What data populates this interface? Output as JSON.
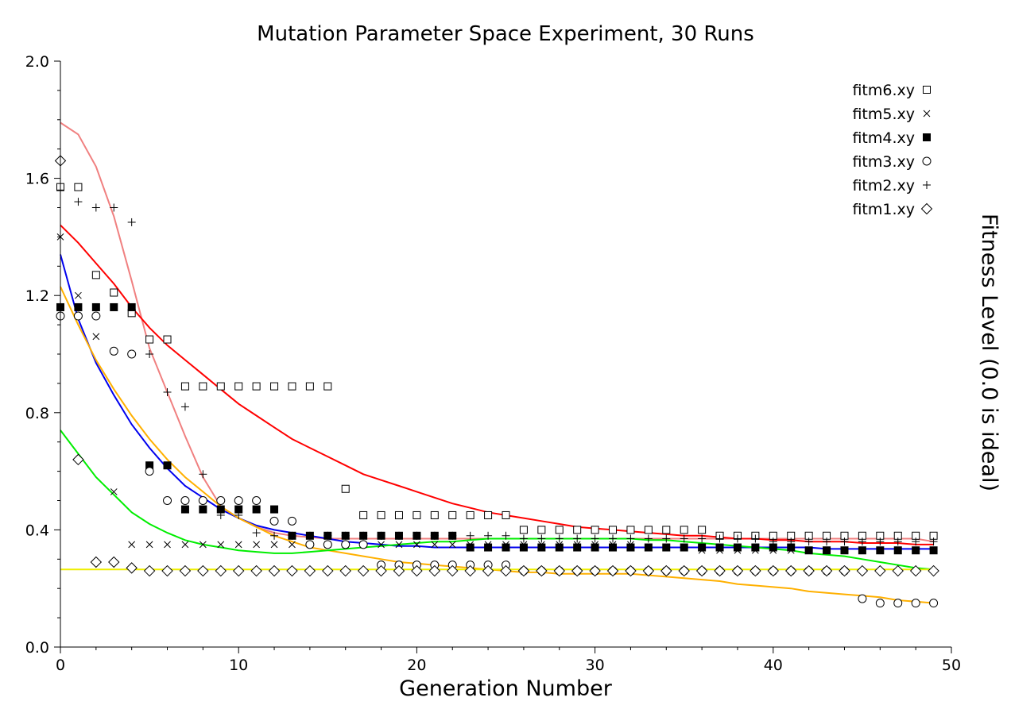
{
  "chart_data": {
    "type": "scatter",
    "title": "Mutation Parameter Space Experiment, 30 Runs",
    "xlabel": "Generation Number",
    "ylabel": "Fitness Level (0.0 is ideal)",
    "xlim": [
      0,
      50
    ],
    "ylim": [
      0,
      2.0
    ],
    "x_ticks": [
      "0",
      "10",
      "20",
      "30",
      "40",
      "50"
    ],
    "y_ticks": [
      "0.0",
      "0.4",
      "0.8",
      "1.2",
      "1.6",
      "2.0"
    ],
    "legend_position": "top-right",
    "series": [
      {
        "name": "fitm6.xy",
        "marker": "square",
        "x": [
          0,
          1,
          2,
          3,
          4,
          5,
          6,
          7,
          8,
          9,
          10,
          11,
          12,
          13,
          14,
          15,
          16,
          17,
          18,
          19,
          20,
          21,
          22,
          23,
          24,
          25,
          26,
          27,
          28,
          29,
          30,
          31,
          32,
          33,
          34,
          35,
          36,
          37,
          38,
          39,
          40,
          41,
          42,
          43,
          44,
          45,
          46,
          47,
          48,
          49
        ],
        "y": [
          1.57,
          1.57,
          1.27,
          1.21,
          1.14,
          1.05,
          1.05,
          0.89,
          0.89,
          0.89,
          0.89,
          0.89,
          0.89,
          0.89,
          0.89,
          0.89,
          0.54,
          0.45,
          0.45,
          0.45,
          0.45,
          0.45,
          0.45,
          0.45,
          0.45,
          0.45,
          0.4,
          0.4,
          0.4,
          0.4,
          0.4,
          0.4,
          0.4,
          0.4,
          0.4,
          0.4,
          0.4,
          0.38,
          0.38,
          0.38,
          0.38,
          0.38,
          0.38,
          0.38,
          0.38,
          0.38,
          0.38,
          0.38,
          0.38,
          0.38
        ]
      },
      {
        "name": "fitm5.xy",
        "marker": "x",
        "x": [
          0,
          1,
          2,
          3,
          4,
          5,
          6,
          7,
          8,
          9,
          10,
          11,
          12,
          13,
          14,
          15,
          16,
          17,
          18,
          19,
          20,
          21,
          22,
          23,
          24,
          25,
          26,
          27,
          28,
          29,
          30,
          31,
          32,
          33,
          34,
          35,
          36,
          37,
          38,
          39,
          40,
          41,
          42,
          43,
          44,
          45,
          46,
          47,
          48,
          49
        ],
        "y": [
          1.4,
          1.2,
          1.06,
          0.53,
          0.35,
          0.35,
          0.35,
          0.35,
          0.35,
          0.35,
          0.35,
          0.35,
          0.35,
          0.35,
          0.35,
          0.35,
          0.35,
          0.35,
          0.35,
          0.35,
          0.35,
          0.35,
          0.35,
          0.35,
          0.35,
          0.35,
          0.35,
          0.35,
          0.35,
          0.35,
          0.35,
          0.35,
          0.35,
          0.34,
          0.34,
          0.34,
          0.33,
          0.33,
          0.33,
          0.33,
          0.33,
          0.33,
          0.33,
          0.33,
          0.33,
          0.33,
          0.33,
          0.33,
          0.33,
          0.33
        ]
      },
      {
        "name": "fitm4.xy",
        "marker": "filled-square",
        "x": [
          0,
          1,
          2,
          3,
          4,
          5,
          6,
          7,
          8,
          9,
          10,
          11,
          12,
          13,
          14,
          15,
          16,
          17,
          18,
          19,
          20,
          21,
          22,
          23,
          24,
          25,
          26,
          27,
          28,
          29,
          30,
          31,
          32,
          33,
          34,
          35,
          36,
          37,
          38,
          39,
          40,
          41,
          42,
          43,
          44,
          45,
          46,
          47,
          48,
          49
        ],
        "y": [
          1.16,
          1.16,
          1.16,
          1.16,
          1.16,
          0.62,
          0.62,
          0.47,
          0.47,
          0.47,
          0.47,
          0.47,
          0.47,
          0.38,
          0.38,
          0.38,
          0.38,
          0.38,
          0.38,
          0.38,
          0.38,
          0.38,
          0.38,
          0.34,
          0.34,
          0.34,
          0.34,
          0.34,
          0.34,
          0.34,
          0.34,
          0.34,
          0.34,
          0.34,
          0.34,
          0.34,
          0.34,
          0.34,
          0.34,
          0.34,
          0.34,
          0.34,
          0.33,
          0.33,
          0.33,
          0.33,
          0.33,
          0.33,
          0.33,
          0.33
        ]
      },
      {
        "name": "fitm3.xy",
        "marker": "circle",
        "x": [
          0,
          1,
          2,
          3,
          4,
          5,
          6,
          7,
          8,
          9,
          10,
          11,
          12,
          13,
          14,
          15,
          16,
          17,
          18,
          19,
          20,
          21,
          22,
          23,
          24,
          25,
          26,
          27,
          28,
          29,
          30,
          31,
          32,
          33,
          34,
          35,
          36,
          37,
          38,
          39,
          40,
          41,
          42,
          43,
          44,
          45,
          46,
          47,
          48,
          49
        ],
        "y": [
          1.13,
          1.13,
          1.13,
          1.01,
          1.0,
          0.6,
          0.5,
          0.5,
          0.5,
          0.5,
          0.5,
          0.5,
          0.43,
          0.43,
          0.35,
          0.35,
          0.35,
          0.35,
          0.28,
          0.28,
          0.28,
          0.28,
          0.28,
          0.28,
          0.28,
          0.28,
          0.26,
          0.26,
          0.26,
          0.26,
          0.26,
          0.26,
          0.26,
          0.26,
          0.26,
          0.26,
          0.26,
          0.26,
          0.26,
          0.26,
          0.26,
          0.26,
          0.26,
          0.26,
          0.26,
          0.165,
          0.15,
          0.15,
          0.15,
          0.15
        ]
      },
      {
        "name": "fitm2.xy",
        "marker": "plus",
        "x": [
          0,
          1,
          2,
          3,
          4,
          5,
          6,
          7,
          8,
          9,
          10,
          11,
          12,
          13,
          14,
          15,
          16,
          17,
          18,
          19,
          20,
          21,
          22,
          23,
          24,
          25,
          26,
          27,
          28,
          29,
          30,
          31,
          32,
          33,
          34,
          35,
          36,
          37,
          38,
          39,
          40,
          41,
          42,
          43,
          44,
          45,
          46,
          47,
          48,
          49
        ],
        "y": [
          1.56,
          1.52,
          1.5,
          1.5,
          1.45,
          1.0,
          0.87,
          0.82,
          0.59,
          0.45,
          0.45,
          0.39,
          0.38,
          0.38,
          0.38,
          0.38,
          0.38,
          0.38,
          0.38,
          0.38,
          0.38,
          0.38,
          0.38,
          0.38,
          0.38,
          0.38,
          0.37,
          0.37,
          0.37,
          0.37,
          0.37,
          0.37,
          0.37,
          0.37,
          0.37,
          0.37,
          0.37,
          0.37,
          0.37,
          0.37,
          0.36,
          0.36,
          0.36,
          0.36,
          0.36,
          0.36,
          0.36,
          0.36,
          0.36,
          0.36
        ]
      },
      {
        "name": "fitm1.xy",
        "marker": "diamond",
        "x": [
          0,
          1,
          2,
          3,
          4,
          5,
          6,
          7,
          8,
          9,
          10,
          11,
          12,
          13,
          14,
          15,
          16,
          17,
          18,
          19,
          20,
          21,
          22,
          23,
          24,
          25,
          26,
          27,
          28,
          29,
          30,
          31,
          32,
          33,
          34,
          35,
          36,
          37,
          38,
          39,
          40,
          41,
          42,
          43,
          44,
          45,
          46,
          47,
          48,
          49
        ],
        "y": [
          1.66,
          0.64,
          0.29,
          0.29,
          0.27,
          0.26,
          0.26,
          0.26,
          0.26,
          0.26,
          0.26,
          0.26,
          0.26,
          0.26,
          0.26,
          0.26,
          0.26,
          0.26,
          0.26,
          0.26,
          0.26,
          0.26,
          0.26,
          0.26,
          0.26,
          0.26,
          0.26,
          0.26,
          0.26,
          0.26,
          0.26,
          0.26,
          0.26,
          0.26,
          0.26,
          0.26,
          0.26,
          0.26,
          0.26,
          0.26,
          0.26,
          0.26,
          0.26,
          0.26,
          0.26,
          0.26,
          0.26,
          0.26,
          0.26,
          0.26
        ]
      }
    ],
    "fit_curves": [
      {
        "color": "#f08080",
        "x": [
          0,
          1,
          2,
          3,
          4,
          5,
          6,
          7,
          8,
          9,
          10,
          11,
          12,
          13,
          14,
          15,
          16,
          17,
          18,
          19,
          20,
          21,
          22,
          23,
          24,
          25,
          26,
          27,
          28,
          29,
          30,
          31,
          32,
          33,
          34,
          35,
          36,
          37,
          38,
          39,
          40,
          41,
          42,
          43,
          44,
          45,
          46,
          47,
          48,
          49
        ],
        "y": [
          1.79,
          1.75,
          1.64,
          1.47,
          1.25,
          1.02,
          0.87,
          0.72,
          0.58,
          0.48,
          0.44,
          0.41,
          0.39,
          0.38,
          0.375,
          0.37,
          0.37,
          0.37,
          0.37,
          0.37,
          0.37,
          0.37,
          0.37,
          0.37,
          0.37,
          0.37,
          0.37,
          0.37,
          0.37,
          0.37,
          0.37,
          0.37,
          0.37,
          0.37,
          0.37,
          0.37,
          0.37,
          0.37,
          0.37,
          0.37,
          0.37,
          0.37,
          0.37,
          0.37,
          0.37,
          0.37,
          0.37,
          0.37,
          0.37,
          0.36
        ]
      },
      {
        "color": "#ff0000",
        "x": [
          0,
          1,
          2,
          3,
          4,
          5,
          6,
          7,
          8,
          9,
          10,
          11,
          12,
          13,
          14,
          15,
          16,
          17,
          18,
          19,
          20,
          21,
          22,
          23,
          24,
          25,
          26,
          27,
          28,
          29,
          30,
          31,
          32,
          33,
          34,
          35,
          36,
          37,
          38,
          39,
          40,
          41,
          42,
          43,
          44,
          45,
          46,
          47,
          48,
          49
        ],
        "y": [
          1.44,
          1.38,
          1.31,
          1.24,
          1.16,
          1.09,
          1.03,
          0.98,
          0.93,
          0.88,
          0.83,
          0.79,
          0.75,
          0.71,
          0.68,
          0.65,
          0.62,
          0.59,
          0.57,
          0.55,
          0.53,
          0.51,
          0.49,
          0.475,
          0.46,
          0.45,
          0.44,
          0.43,
          0.42,
          0.41,
          0.405,
          0.4,
          0.395,
          0.39,
          0.385,
          0.38,
          0.38,
          0.375,
          0.37,
          0.37,
          0.365,
          0.365,
          0.36,
          0.36,
          0.36,
          0.355,
          0.355,
          0.355,
          0.35,
          0.35
        ]
      },
      {
        "color": "#0000ee",
        "x": [
          0,
          1,
          2,
          3,
          4,
          5,
          6,
          7,
          8,
          9,
          10,
          11,
          12,
          13,
          14,
          15,
          16,
          17,
          18,
          19,
          20,
          21,
          22,
          23,
          24,
          25,
          26,
          27,
          28,
          29,
          30,
          31,
          32,
          33,
          34,
          35,
          36,
          37,
          38,
          39,
          40,
          41,
          42,
          43,
          44,
          45,
          46,
          47,
          48,
          49
        ],
        "y": [
          1.34,
          1.12,
          0.97,
          0.86,
          0.76,
          0.68,
          0.61,
          0.55,
          0.51,
          0.47,
          0.44,
          0.415,
          0.4,
          0.39,
          0.38,
          0.37,
          0.36,
          0.355,
          0.35,
          0.345,
          0.345,
          0.34,
          0.34,
          0.34,
          0.34,
          0.34,
          0.34,
          0.34,
          0.34,
          0.34,
          0.34,
          0.34,
          0.34,
          0.34,
          0.34,
          0.34,
          0.34,
          0.34,
          0.34,
          0.34,
          0.34,
          0.34,
          0.34,
          0.335,
          0.335,
          0.335,
          0.335,
          0.335,
          0.335,
          0.335
        ]
      },
      {
        "color": "#ffb000",
        "x": [
          0,
          1,
          2,
          3,
          4,
          5,
          6,
          7,
          8,
          9,
          10,
          11,
          12,
          13,
          14,
          15,
          16,
          17,
          18,
          19,
          20,
          21,
          22,
          23,
          24,
          25,
          26,
          27,
          28,
          29,
          30,
          31,
          32,
          33,
          34,
          35,
          36,
          37,
          38,
          39,
          40,
          41,
          42,
          43,
          44,
          45,
          46,
          47,
          48,
          49
        ],
        "y": [
          1.23,
          1.1,
          0.98,
          0.88,
          0.79,
          0.71,
          0.64,
          0.58,
          0.53,
          0.48,
          0.44,
          0.41,
          0.38,
          0.36,
          0.34,
          0.33,
          0.32,
          0.31,
          0.3,
          0.29,
          0.285,
          0.28,
          0.275,
          0.27,
          0.265,
          0.26,
          0.255,
          0.255,
          0.25,
          0.25,
          0.25,
          0.25,
          0.25,
          0.245,
          0.24,
          0.235,
          0.23,
          0.225,
          0.215,
          0.21,
          0.205,
          0.2,
          0.19,
          0.185,
          0.18,
          0.175,
          0.17,
          0.16,
          0.155,
          0.15
        ]
      },
      {
        "color": "#00ee00",
        "x": [
          0,
          1,
          2,
          3,
          4,
          5,
          6,
          7,
          8,
          9,
          10,
          11,
          12,
          13,
          14,
          15,
          16,
          17,
          18,
          19,
          20,
          21,
          22,
          23,
          24,
          25,
          26,
          27,
          28,
          29,
          30,
          31,
          32,
          33,
          34,
          35,
          36,
          37,
          38,
          39,
          40,
          41,
          42,
          43,
          44,
          45,
          46,
          47,
          48,
          49
        ],
        "y": [
          0.74,
          0.66,
          0.58,
          0.52,
          0.46,
          0.42,
          0.39,
          0.365,
          0.35,
          0.34,
          0.33,
          0.325,
          0.32,
          0.32,
          0.325,
          0.33,
          0.335,
          0.34,
          0.345,
          0.35,
          0.355,
          0.36,
          0.36,
          0.365,
          0.37,
          0.37,
          0.37,
          0.37,
          0.37,
          0.37,
          0.37,
          0.37,
          0.37,
          0.365,
          0.365,
          0.36,
          0.355,
          0.35,
          0.345,
          0.34,
          0.335,
          0.33,
          0.32,
          0.315,
          0.31,
          0.3,
          0.29,
          0.28,
          0.27,
          0.265
        ]
      },
      {
        "color": "#eeee00",
        "x": [
          0,
          5,
          10,
          15,
          20,
          25,
          30,
          35,
          40,
          45,
          49
        ],
        "y": [
          0.265,
          0.265,
          0.265,
          0.265,
          0.265,
          0.265,
          0.265,
          0.265,
          0.265,
          0.265,
          0.265
        ]
      }
    ]
  }
}
